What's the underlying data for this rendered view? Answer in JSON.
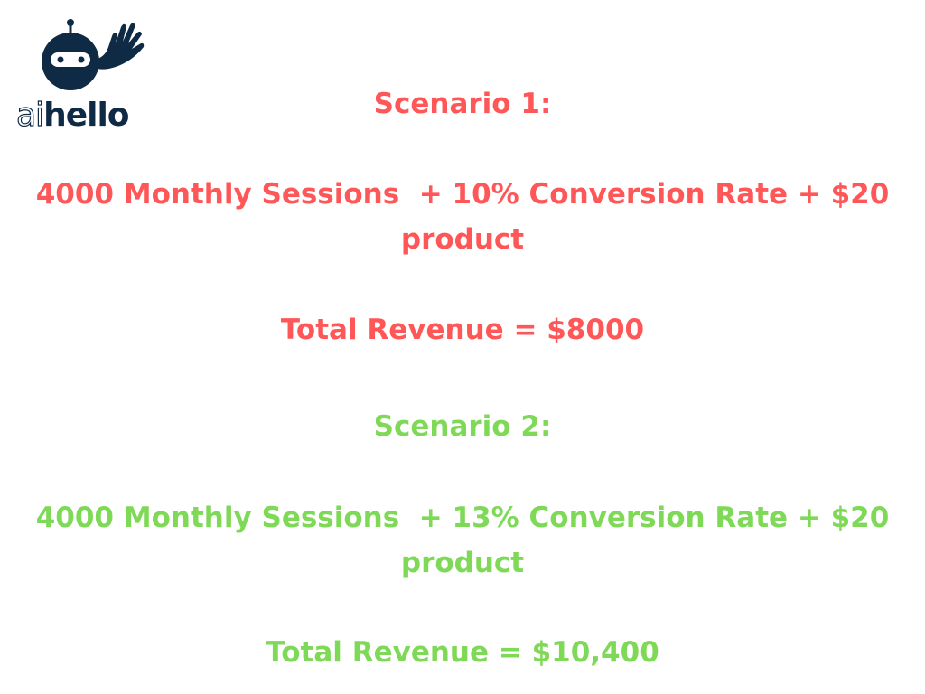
{
  "logo": {
    "text_ai": "ai",
    "text_hello": "hello",
    "color": "#0f2a44"
  },
  "colors": {
    "scenario1": "#ff5757",
    "scenario2": "#7ed957"
  },
  "scenario1": {
    "title": "Scenario 1:",
    "formula_line1": "4000 Monthly Sessions  + 10% Conversion Rate + $20",
    "formula_line2": "product",
    "total": "Total Revenue = $8000"
  },
  "scenario2": {
    "title": "Scenario 2:",
    "formula_line1": "4000 Monthly Sessions  + 13% Conversion Rate + $20",
    "formula_line2": "product",
    "total": "Total Revenue = $10,400"
  }
}
